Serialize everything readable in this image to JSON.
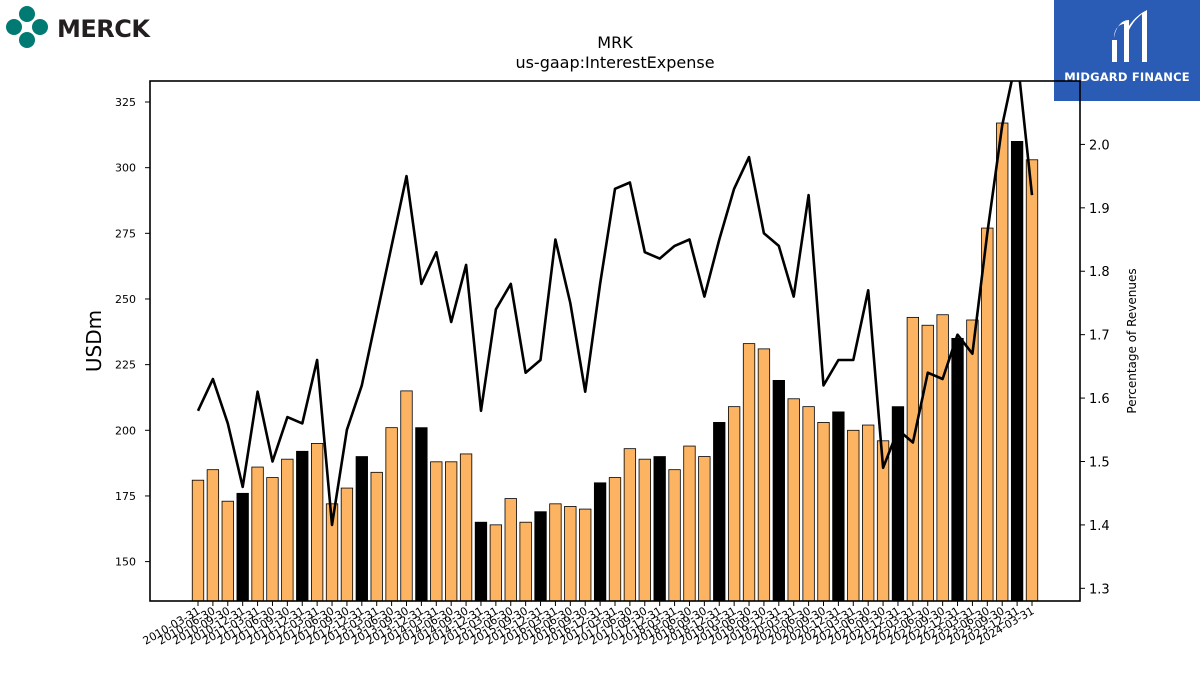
{
  "logos": {
    "left": {
      "wordmark": "MERCK",
      "icon": "merck-molecule-icon",
      "color": "#007a73"
    },
    "right": {
      "wordmark": "MIDGARD FINANCE",
      "icon": "midgard-finance-m-icon",
      "color": "#2b5cb5"
    }
  },
  "chart_data": {
    "type": "bar",
    "title": "MRK",
    "subtitle": "us-gaap:InterestExpense",
    "ylabel": "USDm",
    "y2label": "Percentage of Revenues",
    "ylim": [
      135,
      333
    ],
    "y2lim": [
      1.28,
      2.1
    ],
    "yticks": [
      150,
      175,
      200,
      225,
      250,
      275,
      300,
      325
    ],
    "y2ticks": [
      1.3,
      1.4,
      1.5,
      1.6,
      1.7,
      1.8,
      1.9,
      2.0
    ],
    "colors": {
      "bar": "#fdb462",
      "highlight": "#000000",
      "line": "#000000"
    },
    "categories": [
      "2010-03-31",
      "2010-06-30",
      "2010-09-30",
      "2010-12-31",
      "2011-03-31",
      "2011-06-30",
      "2011-09-30",
      "2011-12-31",
      "2012-03-31",
      "2012-06-30",
      "2012-09-30",
      "2012-12-31",
      "2013-03-31",
      "2013-06-30",
      "2013-09-30",
      "2013-12-31",
      "2014-03-31",
      "2014-06-30",
      "2014-09-30",
      "2014-12-31",
      "2015-03-31",
      "2015-06-30",
      "2015-09-30",
      "2015-12-31",
      "2016-03-31",
      "2016-06-30",
      "2016-09-30",
      "2016-12-31",
      "2017-03-31",
      "2017-06-30",
      "2017-09-30",
      "2017-12-31",
      "2018-03-31",
      "2018-06-30",
      "2018-09-30",
      "2018-12-31",
      "2019-03-31",
      "2019-06-30",
      "2019-09-30",
      "2019-12-31",
      "2020-03-31",
      "2020-06-30",
      "2020-09-30",
      "2020-12-31",
      "2021-03-31",
      "2021-06-30",
      "2021-09-30",
      "2021-12-31",
      "2022-03-31",
      "2022-06-30",
      "2022-09-30",
      "2022-12-31",
      "2023-03-31",
      "2023-06-30",
      "2023-09-30",
      "2023-12-31",
      "2024-03-31"
    ],
    "series": [
      {
        "type": "bar",
        "values": [
          181,
          185,
          173,
          176,
          186,
          182,
          189,
          192,
          195,
          172,
          178,
          190,
          184,
          201,
          215,
          201,
          188,
          188,
          191,
          165,
          164,
          174,
          165,
          169,
          172,
          171,
          170,
          180,
          182,
          193,
          189,
          190,
          185,
          194,
          190,
          203,
          209,
          233,
          231,
          219,
          212,
          209,
          203,
          207,
          200,
          202,
          196,
          209,
          243,
          240,
          244,
          235,
          242,
          277,
          317,
          310,
          303
        ],
        "highlight": [
          false,
          false,
          false,
          true,
          false,
          false,
          false,
          true,
          false,
          false,
          false,
          true,
          false,
          false,
          false,
          true,
          false,
          false,
          false,
          true,
          false,
          false,
          false,
          true,
          false,
          false,
          false,
          true,
          false,
          false,
          false,
          true,
          false,
          false,
          false,
          true,
          false,
          false,
          false,
          true,
          false,
          false,
          false,
          true,
          false,
          false,
          false,
          true,
          false,
          false,
          false,
          true,
          false,
          false,
          false,
          true,
          false
        ]
      },
      {
        "type": "line",
        "axis": "y2",
        "values": [
          1.58,
          1.63,
          1.56,
          1.46,
          1.61,
          1.5,
          1.57,
          1.56,
          1.66,
          1.4,
          1.55,
          1.62,
          1.73,
          1.84,
          1.95,
          1.78,
          1.83,
          1.72,
          1.81,
          1.58,
          1.74,
          1.78,
          1.64,
          1.66,
          1.85,
          1.75,
          1.61,
          1.78,
          1.93,
          1.94,
          1.83,
          1.82,
          1.84,
          1.85,
          1.76,
          1.85,
          1.93,
          1.98,
          1.86,
          1.84,
          1.76,
          1.92,
          1.62,
          1.66,
          1.66,
          1.77,
          1.49,
          1.55,
          1.53,
          1.64,
          1.63,
          1.7,
          1.67,
          1.86,
          2.03,
          2.14,
          1.92
        ]
      }
    ]
  }
}
